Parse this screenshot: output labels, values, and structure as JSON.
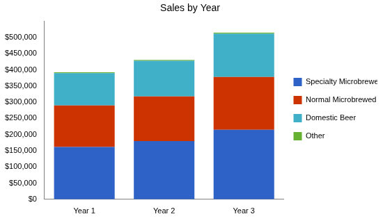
{
  "chart_data": {
    "type": "bar",
    "title": "Sales by Year",
    "categories": [
      "Year 1",
      "Year 2",
      "Year 3"
    ],
    "stacked": true,
    "grid": false,
    "legend": "right",
    "ylim": [
      0,
      550000
    ],
    "yticks": [
      {
        "value": 0,
        "label": "$0"
      },
      {
        "value": 50000,
        "label": "$50,000"
      },
      {
        "value": 100000,
        "label": "$100,000"
      },
      {
        "value": 150000,
        "label": "$150,000"
      },
      {
        "value": 200000,
        "label": "$200,000"
      },
      {
        "value": 250000,
        "label": "$250,000"
      },
      {
        "value": 300000,
        "label": "$300,000"
      },
      {
        "value": 350000,
        "label": "$350,000"
      },
      {
        "value": 400000,
        "label": "$400,000"
      },
      {
        "value": 450000,
        "label": "$450,000"
      },
      {
        "value": 500000,
        "label": "$500,000"
      }
    ],
    "series": [
      {
        "name": "Specialty Microbrewed Beer",
        "color": "#2e62c6",
        "values": [
          162000,
          180000,
          215000
        ]
      },
      {
        "name": "Normal Microbrewed Beer",
        "color": "#cc3300",
        "values": [
          128000,
          138000,
          163000
        ]
      },
      {
        "name": "Domestic Beer",
        "color": "#40b0c8",
        "values": [
          100000,
          110000,
          134000
        ]
      },
      {
        "name": "Other",
        "color": "#66b032",
        "values": [
          3000,
          3000,
          3000
        ]
      }
    ]
  }
}
